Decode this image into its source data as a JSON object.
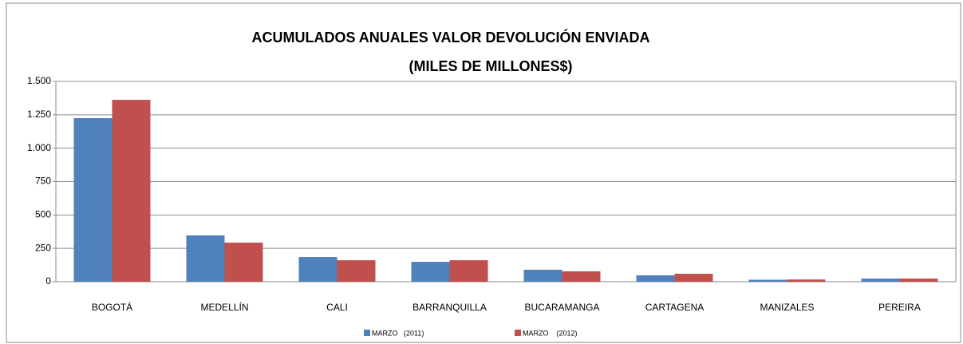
{
  "chart_data": {
    "type": "bar",
    "title": "ACUMULADOS ANUALES VALOR DEVOLUCIÓN  ENVIADA",
    "subtitle": "(MILES DE MILLONES$)",
    "categories": [
      "BOGOTÁ",
      "MEDELLÍN",
      "CALI",
      "BARRANQUILLA",
      "BUCARAMANGA",
      "CARTAGENA",
      "MANIZALES",
      "PEREIRA"
    ],
    "series": [
      {
        "name": "MARZO   (2011)",
        "color": "#4f81bd",
        "values": [
          1225,
          347,
          185,
          149,
          90,
          48,
          15,
          24
        ]
      },
      {
        "name": "MARZO    (2012)",
        "color": "#c0504d",
        "values": [
          1362,
          293,
          161,
          161,
          78,
          60,
          17,
          24
        ]
      }
    ],
    "ylim": [
      0,
      1500
    ],
    "yticks": [
      0,
      250,
      500,
      750,
      {
        "value": 1000,
        "label": "1.000"
      },
      {
        "value": 1250,
        "label": "1.250"
      },
      {
        "value": 1500,
        "label": "1.500"
      }
    ],
    "grid": true,
    "legend": "bottom"
  }
}
